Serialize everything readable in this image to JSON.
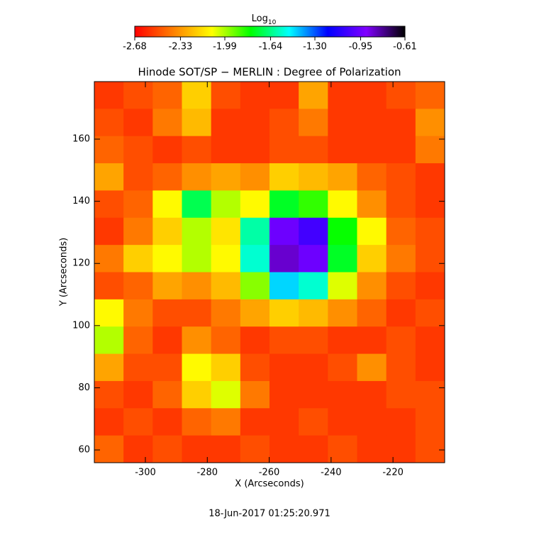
{
  "chart_data": {
    "type": "heatmap",
    "title": "Hinode SOT/SP − MERLIN : Degree of Polarization",
    "xlabel": "X (Arcseconds)",
    "ylabel": "Y (Arcseconds)",
    "footer": "18-Jun-2017 01:25:20.971",
    "colorbar_label": "Log",
    "colorbar_label_sub": "10",
    "colormap": [
      "#ff0000",
      "#ff8000",
      "#ffff00",
      "#00ff00",
      "#00ffff",
      "#0000ff",
      "#8000ff",
      "#000000"
    ],
    "clim": [
      -2.68,
      -0.61
    ],
    "cticks": [
      -2.68,
      -2.33,
      -1.99,
      -1.64,
      {
        "value": -1.3,
        "label": "-1.30"
      },
      -0.95,
      -0.61
    ],
    "xlim": [
      -316.5,
      -203.3
    ],
    "ylim": [
      55.9,
      178.5
    ],
    "xticks": [
      -300,
      -280,
      -260,
      -240,
      -220
    ],
    "yticks": [
      60,
      80,
      100,
      120,
      140,
      160
    ],
    "z": [
      [
        -2.55,
        -2.5,
        -2.45,
        -2.2,
        -2.5,
        -2.55,
        -2.55,
        -2.3,
        -2.55,
        -2.55,
        -2.5,
        -2.45
      ],
      [
        -2.5,
        -2.55,
        -2.4,
        -2.25,
        -2.55,
        -2.55,
        -2.5,
        -2.4,
        -2.55,
        -2.55,
        -2.55,
        -2.35
      ],
      [
        -2.45,
        -2.5,
        -2.55,
        -2.5,
        -2.55,
        -2.55,
        -2.5,
        -2.5,
        -2.55,
        -2.55,
        -2.55,
        -2.4
      ],
      [
        -2.3,
        -2.5,
        -2.45,
        -2.35,
        -2.3,
        -2.35,
        -2.2,
        -2.25,
        -2.3,
        -2.45,
        -2.5,
        -2.55
      ],
      [
        -2.5,
        -2.45,
        -2.1,
        -1.7,
        -2.0,
        -2.1,
        -1.75,
        -1.85,
        -2.1,
        -2.35,
        -2.5,
        -2.55
      ],
      [
        -2.55,
        -2.4,
        -2.2,
        -2.0,
        -2.15,
        -1.6,
        -0.95,
        -1.05,
        -1.8,
        -2.1,
        -2.45,
        -2.5
      ],
      [
        -2.4,
        -2.2,
        -2.1,
        -2.0,
        -2.1,
        -1.55,
        -0.85,
        -0.95,
        -1.75,
        -2.2,
        -2.4,
        -2.5
      ],
      [
        -2.5,
        -2.45,
        -2.3,
        -2.35,
        -2.25,
        -1.95,
        -1.45,
        -1.55,
        -2.05,
        -2.35,
        -2.5,
        -2.55
      ],
      [
        -2.1,
        -2.4,
        -2.5,
        -2.5,
        -2.4,
        -2.3,
        -2.2,
        -2.25,
        -2.35,
        -2.45,
        -2.55,
        -2.5
      ],
      [
        -2.0,
        -2.45,
        -2.55,
        -2.35,
        -2.45,
        -2.55,
        -2.5,
        -2.5,
        -2.55,
        -2.55,
        -2.5,
        -2.55
      ],
      [
        -2.3,
        -2.5,
        -2.5,
        -2.1,
        -2.2,
        -2.5,
        -2.55,
        -2.55,
        -2.5,
        -2.35,
        -2.5,
        -2.55
      ],
      [
        -2.5,
        -2.55,
        -2.45,
        -2.2,
        -2.05,
        -2.4,
        -2.55,
        -2.55,
        -2.55,
        -2.55,
        -2.5,
        -2.5
      ],
      [
        -2.55,
        -2.5,
        -2.55,
        -2.45,
        -2.4,
        -2.55,
        -2.55,
        -2.5,
        -2.55,
        -2.55,
        -2.55,
        -2.5
      ],
      [
        -2.45,
        -2.55,
        -2.5,
        -2.55,
        -2.55,
        -2.5,
        -2.55,
        -2.55,
        -2.5,
        -2.55,
        -2.55,
        -2.5
      ]
    ]
  }
}
